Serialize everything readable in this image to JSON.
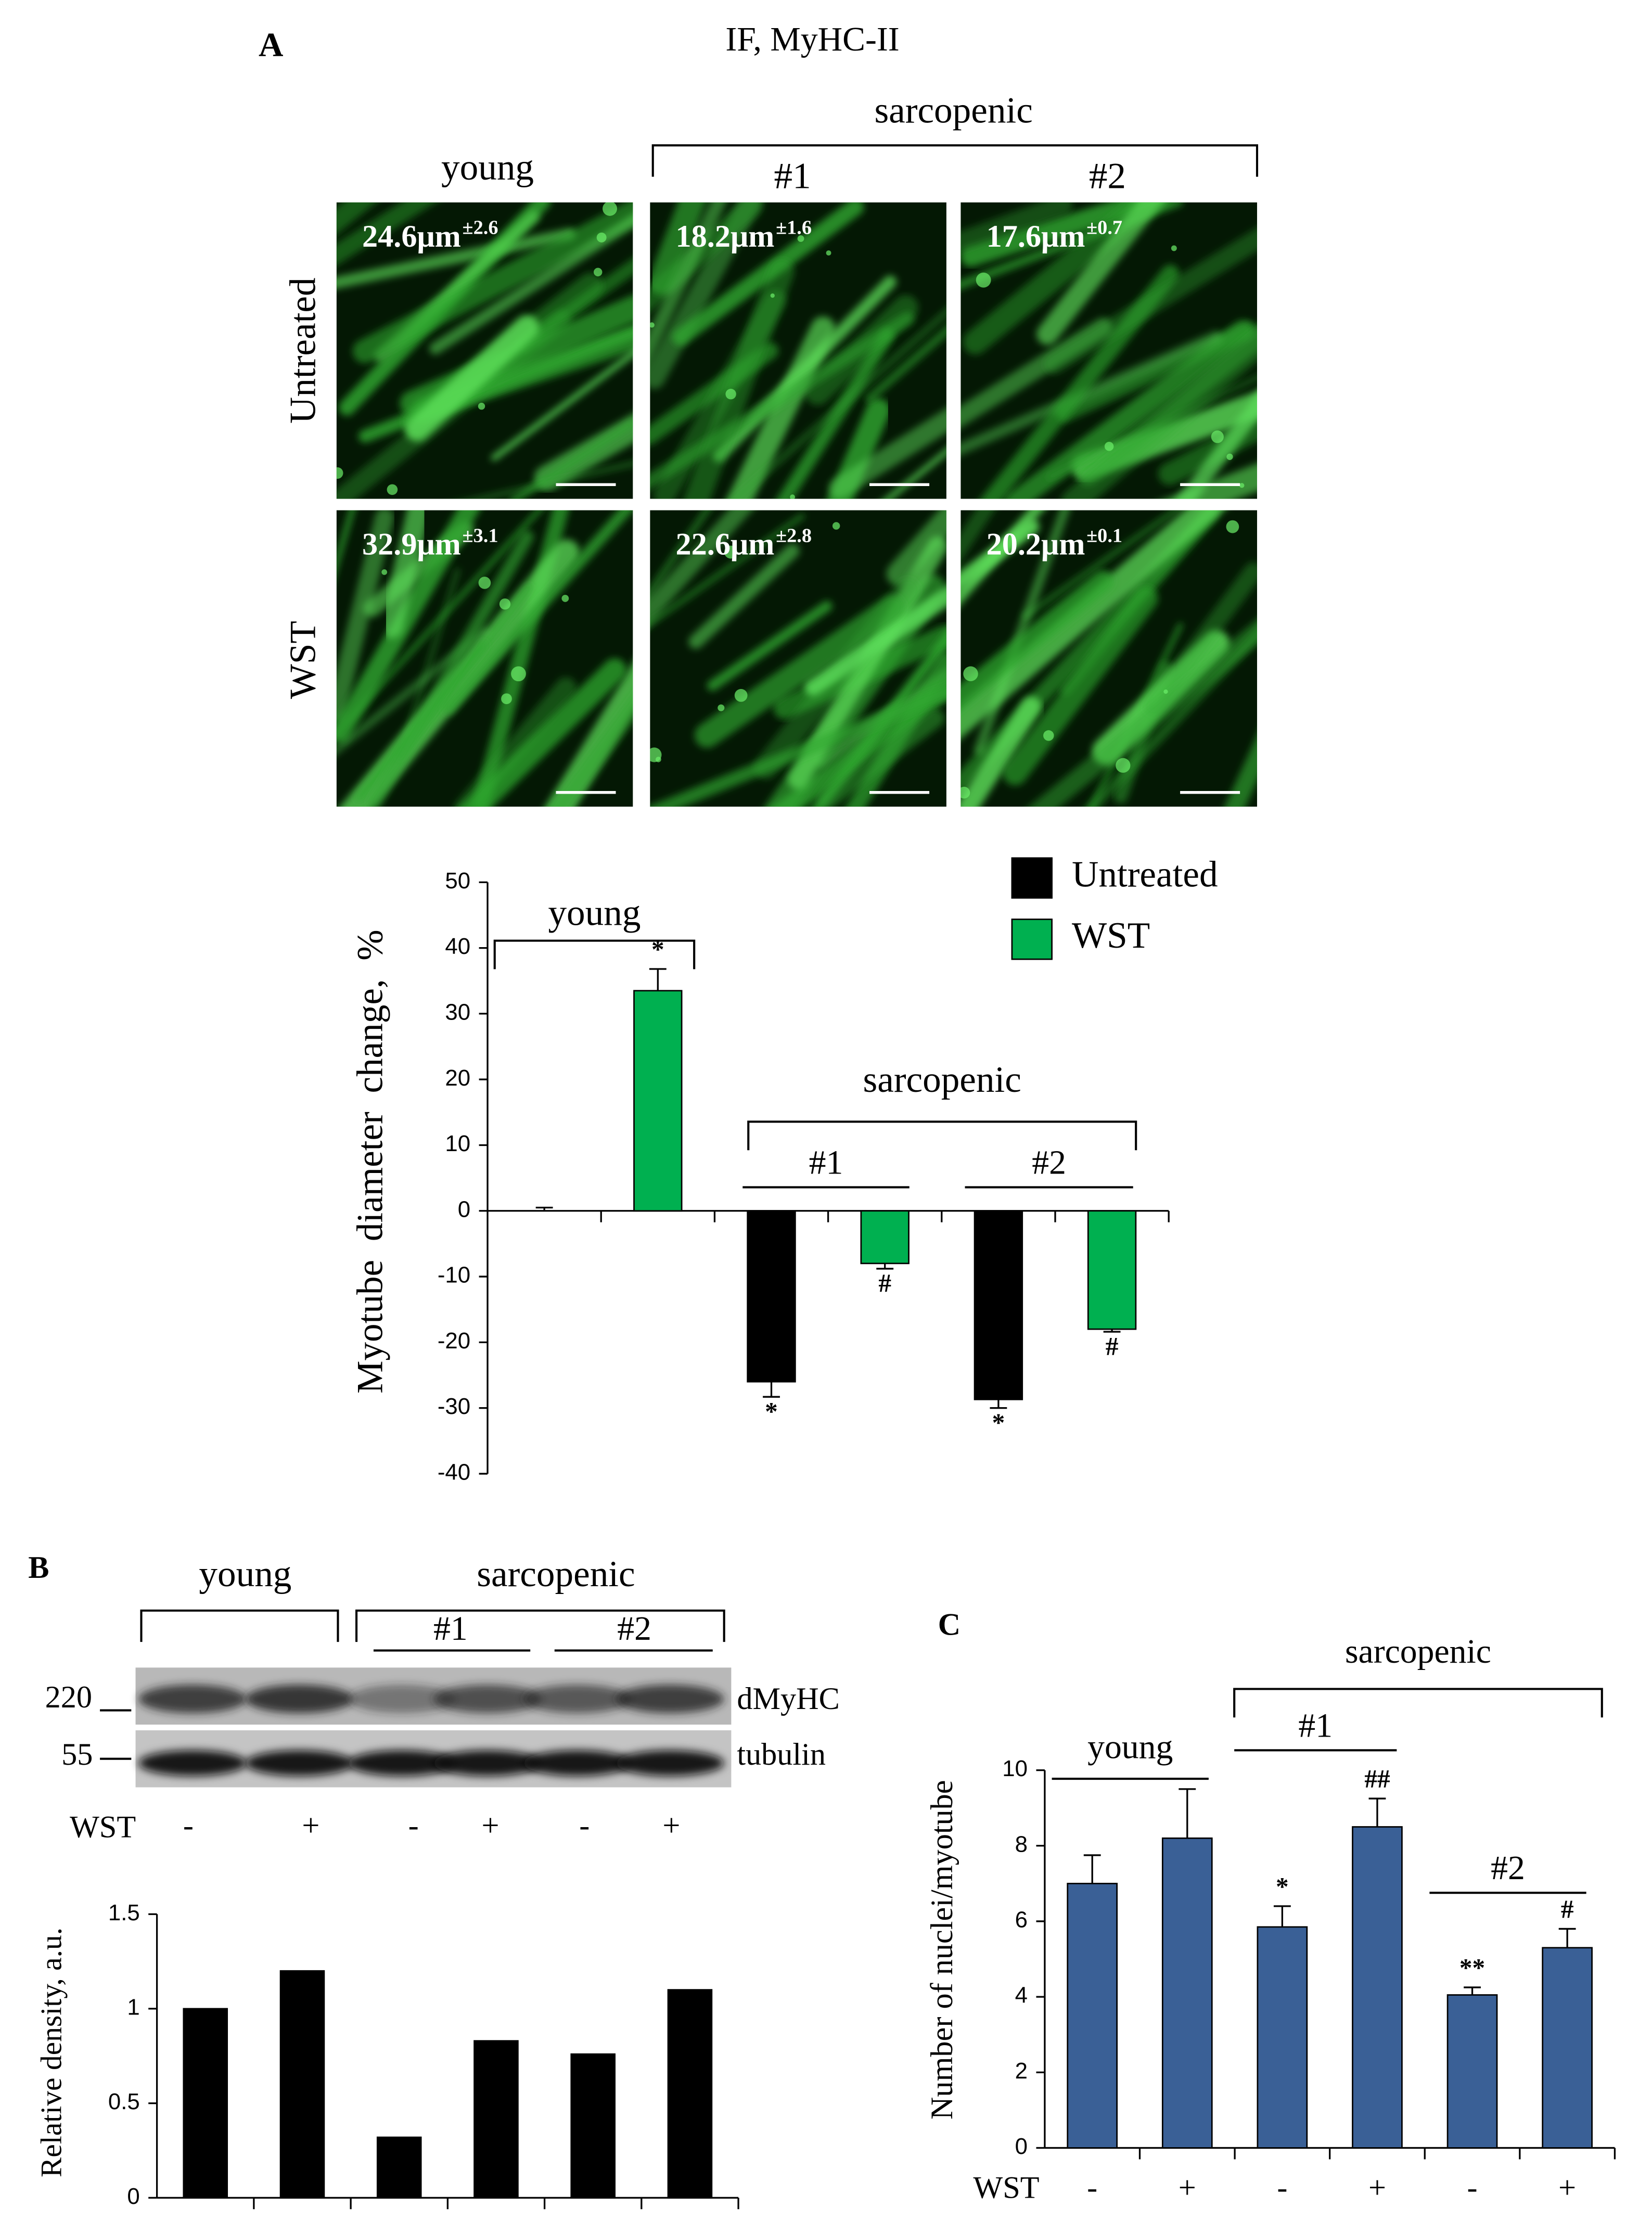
{
  "panel_a": {
    "label": "A",
    "title": "IF, MyHC-II",
    "group": "sarcopenic",
    "columns": [
      "young",
      "#1",
      "#2"
    ],
    "rows": [
      "Untreated",
      "WST"
    ],
    "images": [
      [
        {
          "diameter": "24.6μm",
          "sd": "±2.6"
        },
        {
          "diameter": "18.2μm",
          "sd": "±1.6"
        },
        {
          "diameter": "17.6μm",
          "sd": "±0.7"
        }
      ],
      [
        {
          "diameter": "32.9μm",
          "sd": "±3.1"
        },
        {
          "diameter": "22.6μm",
          "sd": "±2.8"
        },
        {
          "diameter": "20.2μm",
          "sd": "±0.1"
        }
      ]
    ]
  },
  "panel_b": {
    "label": "B",
    "blot": {
      "groups": [
        "young",
        "sarcopenic",
        "#1",
        "#2"
      ],
      "markers": [
        "220",
        "55"
      ],
      "bands": [
        "dMyHC",
        "tubulin"
      ],
      "treatment": {
        "label": "WST",
        "signs": [
          "-",
          "+",
          "-",
          "+",
          "-",
          "+"
        ]
      }
    }
  },
  "panel_c": {
    "label": "C"
  },
  "chart_data": [
    {
      "type": "bar",
      "ylabel": "Myotube  diameter  change,  %",
      "categories": [
        null,
        null,
        null,
        null,
        null,
        null
      ],
      "groups": [
        "young",
        "sarcopenic",
        "#1",
        "#2"
      ],
      "series": [
        {
          "name": "Untreated",
          "color": "#000000",
          "values": [
            0,
            null,
            -26,
            null,
            -28.7,
            null
          ],
          "errors": [
            0.5,
            null,
            2.3,
            null,
            1.3,
            null
          ],
          "annotations": [
            null,
            null,
            "*",
            null,
            "*",
            null
          ]
        },
        {
          "name": "WST",
          "color": "#00b050",
          "values": [
            null,
            33.5,
            null,
            -8,
            null,
            -18
          ],
          "errors": [
            null,
            3.3,
            null,
            0.8,
            null,
            0.4
          ],
          "annotations": [
            null,
            "*",
            null,
            "#",
            null,
            "#"
          ]
        }
      ],
      "ylim": [
        -40,
        50
      ],
      "yticks": [
        -40,
        -30,
        -20,
        -10,
        0,
        10,
        20,
        30,
        40,
        50
      ],
      "legend": "upper right"
    },
    {
      "type": "bar",
      "ylabel": "Relative density, a.u.",
      "categories": [
        null,
        null,
        null,
        null,
        null,
        null
      ],
      "values": [
        1,
        1.2,
        0.32,
        0.83,
        0.76,
        1.1
      ],
      "color": "#000000",
      "ylim": [
        0,
        1.5
      ],
      "yticks": [
        0,
        0.5,
        1,
        1.5
      ]
    },
    {
      "type": "bar",
      "ylabel": "Number of nuclei/myotube",
      "xlabel": "WST",
      "categories": [
        "-",
        "+",
        "-",
        "+",
        "-",
        "+"
      ],
      "groups": [
        "young",
        "sarcopenic",
        "#1",
        "#2"
      ],
      "values": [
        7.0,
        8.2,
        5.85,
        8.5,
        4.05,
        5.3
      ],
      "errors": [
        0.75,
        1.3,
        0.55,
        0.75,
        0.2,
        0.5
      ],
      "annotations": [
        null,
        null,
        "*",
        "##",
        "**",
        "#"
      ],
      "color": "#3a6096",
      "ylim": [
        0,
        10
      ],
      "yticks": [
        0,
        2,
        4,
        6,
        8,
        10
      ]
    }
  ]
}
